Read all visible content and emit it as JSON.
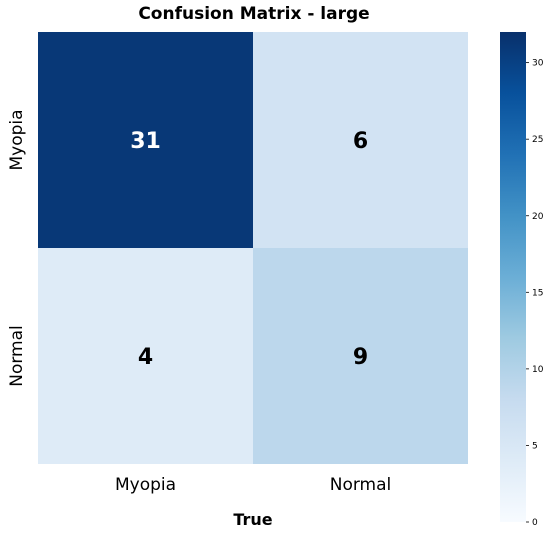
{
  "chart_data": {
    "type": "heatmap",
    "title": "Confusion Matrix - large",
    "xlabel": "True",
    "ylabel": "",
    "x_categories": [
      "Myopia",
      "Normal"
    ],
    "y_categories": [
      "Myopia",
      "Normal"
    ],
    "values": [
      [
        31,
        6
      ],
      [
        4,
        9
      ]
    ],
    "colormap": "Blues",
    "colorbar": {
      "min": 0,
      "max": 32,
      "ticks": [
        0,
        5,
        10,
        15,
        20,
        25,
        30
      ]
    }
  }
}
